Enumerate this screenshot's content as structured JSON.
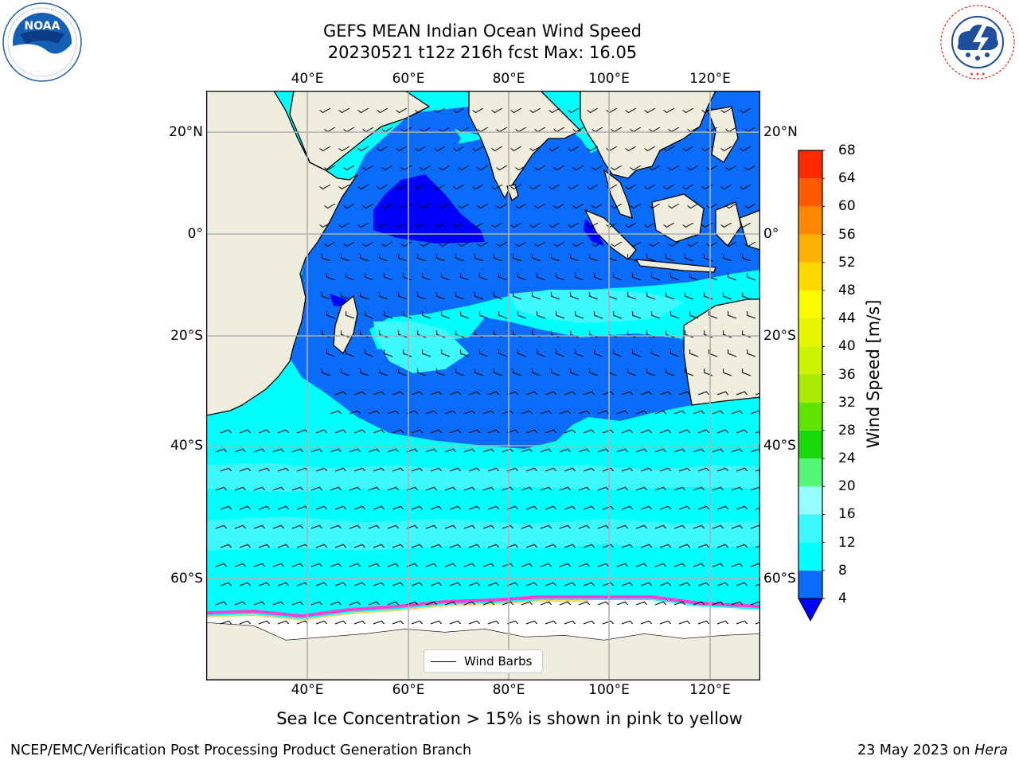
{
  "title": {
    "line1": "GEFS MEAN Indian Ocean Wind Speed",
    "line2": "20230521 t12z 216h fcst   Max: 16.05"
  },
  "logos": {
    "noaa": {
      "icon": "noaa-logo",
      "text": "NOAA",
      "ring_text": "NATIONAL OCEANIC AND ATMOSPHERIC ADMINISTRATION · U.S. DEPARTMENT OF COMMERCE"
    },
    "nws": {
      "icon": "nws-logo",
      "ring_text": "NATIONAL WEATHER SERVICE"
    }
  },
  "map": {
    "lon_range": [
      20,
      130
    ],
    "lat_range": [
      -74,
      27
    ],
    "lon_ticks": [
      "40°E",
      "60°E",
      "80°E",
      "100°E",
      "120°E"
    ],
    "lat_ticks_left": [
      "20°N",
      "0°",
      "20°S",
      "40°S",
      "60°S"
    ],
    "lat_ticks_right": [
      "20°N",
      "0°",
      "20°S",
      "40°S",
      "60°S"
    ],
    "gridlines": true,
    "land_color": "#efedde",
    "ice_color": "#ffffff"
  },
  "colorbar": {
    "label": "Wind Speed [m/s]",
    "ticks": [
      "68",
      "64",
      "60",
      "56",
      "52",
      "48",
      "44",
      "40",
      "36",
      "32",
      "28",
      "24",
      "20",
      "16",
      "12",
      "8",
      "4"
    ],
    "colors": [
      "#0000ff",
      "#0a6cfb",
      "#00ffff",
      "#3df8ff",
      "#95ffff",
      "#55f776",
      "#18d80b",
      "#5fe400",
      "#a7e900",
      "#cef300",
      "#e8f400",
      "#fcfc00",
      "#ffd800",
      "#ffb000",
      "#ff8800",
      "#ff5a00",
      "#ff2a00",
      "#ff0000"
    ]
  },
  "legend": {
    "label": "Wind Barbs"
  },
  "caption": "Sea Ice Concentration > 15% is shown in pink to yellow",
  "footer": {
    "left": "NCEP/EMC/Verification Post Processing Product Generation Branch",
    "right_prefix": "23 May 2023 on ",
    "right_italic": "Hera"
  }
}
